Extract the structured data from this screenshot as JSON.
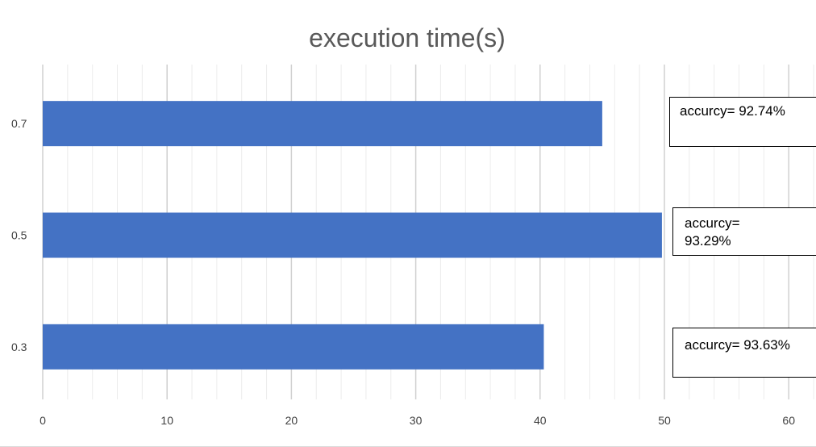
{
  "chart_data": {
    "type": "bar",
    "orientation": "horizontal",
    "title": "execution time(s)",
    "xlabel": "",
    "ylabel": "",
    "categories": [
      "0.3",
      "0.5",
      "0.7"
    ],
    "values": [
      40.3,
      49.8,
      45
    ],
    "x_ticks": [
      "0",
      "10",
      "20",
      "30",
      "40",
      "50",
      "60"
    ],
    "xlim": [
      0,
      62
    ],
    "grid": true,
    "legend": "none",
    "bar_color": "#4472c4",
    "annotations": [
      {
        "category": "0.7",
        "text": "accurcy= 92.74%"
      },
      {
        "category": "0.5",
        "text": "accurcy= 93.29%"
      },
      {
        "category": "0.3",
        "text": "accurcy= 93.63%"
      }
    ]
  }
}
